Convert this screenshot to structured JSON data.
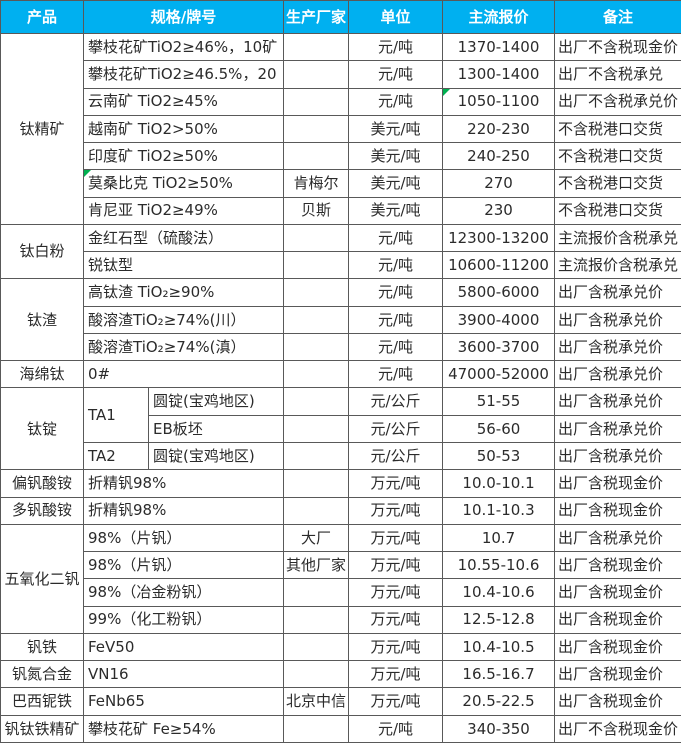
{
  "table": {
    "columns": [
      "产品",
      "规格/牌号",
      "生产厂家",
      "单位",
      "主流报价",
      "备注"
    ]
  },
  "colors": {
    "header_bg": "#00B0F0",
    "header_text": "#FFFFFF",
    "border": "#595959",
    "text": "#2B2B2B",
    "comment_flag_green": "#00B050"
  },
  "icons": {
    "comment_flag": "green-corner-triangle"
  },
  "rows": [
    {
      "cells": [
        {
          "col": "product",
          "t": "钛精矿",
          "rs": 7
        },
        {
          "col": "spec",
          "t": "攀枝花矿TiO2≥46%，10矿",
          "cs": 2
        },
        {
          "col": "mfr",
          "t": ""
        },
        {
          "col": "unit",
          "t": "元/吨"
        },
        {
          "col": "price",
          "t": "1370-1400"
        },
        {
          "col": "remark",
          "t": "出厂不含税现金价"
        }
      ]
    },
    {
      "cells": [
        {
          "col": "spec",
          "t": "攀枝花矿TiO2≥46.5%，20",
          "cs": 2
        },
        {
          "col": "mfr",
          "t": ""
        },
        {
          "col": "unit",
          "t": "元/吨"
        },
        {
          "col": "price",
          "t": "1300-1400"
        },
        {
          "col": "remark",
          "t": "出厂不含税承兑"
        }
      ]
    },
    {
      "cells": [
        {
          "col": "spec",
          "t": "云南矿 TiO2≥45%",
          "cs": 2
        },
        {
          "col": "mfr",
          "t": ""
        },
        {
          "col": "unit",
          "t": "元/吨"
        },
        {
          "col": "price",
          "t": "1050-1100",
          "flag": true
        },
        {
          "col": "remark",
          "t": "出厂不含税承兑价"
        }
      ]
    },
    {
      "cells": [
        {
          "col": "spec",
          "t": "越南矿 TiO2>50%",
          "cs": 2
        },
        {
          "col": "mfr",
          "t": ""
        },
        {
          "col": "unit",
          "t": "美元/吨"
        },
        {
          "col": "price",
          "t": "220-230"
        },
        {
          "col": "remark",
          "t": "不含税港口交货"
        }
      ]
    },
    {
      "cells": [
        {
          "col": "spec",
          "t": "印度矿 TiO2≥50%",
          "cs": 2
        },
        {
          "col": "mfr",
          "t": ""
        },
        {
          "col": "unit",
          "t": "美元/吨"
        },
        {
          "col": "price",
          "t": "240-250"
        },
        {
          "col": "remark",
          "t": "不含税港口交货"
        }
      ]
    },
    {
      "cells": [
        {
          "col": "spec",
          "t": "莫桑比克 TiO2≥50%",
          "cs": 2,
          "flag": true
        },
        {
          "col": "mfr",
          "t": "肯梅尔"
        },
        {
          "col": "unit",
          "t": "美元/吨"
        },
        {
          "col": "price",
          "t": "270"
        },
        {
          "col": "remark",
          "t": "不含税港口交货"
        }
      ]
    },
    {
      "cells": [
        {
          "col": "spec",
          "t": "肯尼亚 TiO2≥49%",
          "cs": 2
        },
        {
          "col": "mfr",
          "t": "贝斯"
        },
        {
          "col": "unit",
          "t": "美元/吨"
        },
        {
          "col": "price",
          "t": "230"
        },
        {
          "col": "remark",
          "t": "不含税港口交货"
        }
      ]
    },
    {
      "cells": [
        {
          "col": "product",
          "t": "钛白粉",
          "rs": 2
        },
        {
          "col": "spec",
          "t": "金红石型（硫酸法）",
          "cs": 2
        },
        {
          "col": "mfr",
          "t": ""
        },
        {
          "col": "unit",
          "t": "元/吨"
        },
        {
          "col": "price",
          "t": "12300-13200"
        },
        {
          "col": "remark",
          "t": "主流报价含税承兑"
        }
      ]
    },
    {
      "cells": [
        {
          "col": "spec",
          "t": "锐钛型",
          "cs": 2
        },
        {
          "col": "mfr",
          "t": ""
        },
        {
          "col": "unit",
          "t": "元/吨"
        },
        {
          "col": "price",
          "t": "10600-11200"
        },
        {
          "col": "remark",
          "t": "主流报价含税承兑"
        }
      ]
    },
    {
      "cells": [
        {
          "col": "product",
          "t": "钛渣",
          "rs": 3
        },
        {
          "col": "spec",
          "t": "高钛渣 TiO₂≥90%",
          "cs": 2
        },
        {
          "col": "mfr",
          "t": ""
        },
        {
          "col": "unit",
          "t": "元/吨"
        },
        {
          "col": "price",
          "t": "5800-6000"
        },
        {
          "col": "remark",
          "t": "出厂含税承兑价"
        }
      ]
    },
    {
      "cells": [
        {
          "col": "spec",
          "t": "酸溶渣TiO₂≥74%(川）",
          "cs": 2
        },
        {
          "col": "mfr",
          "t": ""
        },
        {
          "col": "unit",
          "t": "元/吨"
        },
        {
          "col": "price",
          "t": "3900-4000"
        },
        {
          "col": "remark",
          "t": "出厂含税承兑价"
        }
      ]
    },
    {
      "cells": [
        {
          "col": "spec",
          "t": "酸溶渣TiO₂≥74%(滇）",
          "cs": 2
        },
        {
          "col": "mfr",
          "t": ""
        },
        {
          "col": "unit",
          "t": "元/吨"
        },
        {
          "col": "price",
          "t": "3600-3700"
        },
        {
          "col": "remark",
          "t": "出厂含税承兑价"
        }
      ]
    },
    {
      "cells": [
        {
          "col": "product",
          "t": "海绵钛"
        },
        {
          "col": "spec",
          "t": "0#",
          "cs": 2
        },
        {
          "col": "mfr",
          "t": ""
        },
        {
          "col": "unit",
          "t": "元/吨"
        },
        {
          "col": "price",
          "t": "47000-52000"
        },
        {
          "col": "remark",
          "t": "出厂含税承兑价"
        }
      ]
    },
    {
      "cells": [
        {
          "col": "product",
          "t": "钛锭",
          "rs": 3
        },
        {
          "col": "specA",
          "t": "TA1",
          "rs": 2
        },
        {
          "col": "specB",
          "t": "圆锭(宝鸡地区)"
        },
        {
          "col": "mfr",
          "t": ""
        },
        {
          "col": "unit",
          "t": "元/公斤"
        },
        {
          "col": "price",
          "t": "51-55"
        },
        {
          "col": "remark",
          "t": "出厂含税承兑价"
        }
      ]
    },
    {
      "cells": [
        {
          "col": "specB",
          "t": "EB板坯"
        },
        {
          "col": "mfr",
          "t": ""
        },
        {
          "col": "unit",
          "t": "元/公斤"
        },
        {
          "col": "price",
          "t": "56-60"
        },
        {
          "col": "remark",
          "t": "出厂含税承兑价"
        }
      ]
    },
    {
      "cells": [
        {
          "col": "specA",
          "t": "TA2"
        },
        {
          "col": "specB",
          "t": "圆锭(宝鸡地区)"
        },
        {
          "col": "mfr",
          "t": ""
        },
        {
          "col": "unit",
          "t": "元/公斤"
        },
        {
          "col": "price",
          "t": "50-53"
        },
        {
          "col": "remark",
          "t": "出厂含税承兑价"
        }
      ]
    },
    {
      "cells": [
        {
          "col": "product",
          "t": "偏钒酸铵"
        },
        {
          "col": "spec",
          "t": "折精钒98%",
          "cs": 2
        },
        {
          "col": "mfr",
          "t": ""
        },
        {
          "col": "unit",
          "t": "万元/吨"
        },
        {
          "col": "price",
          "t": "10.0-10.1"
        },
        {
          "col": "remark",
          "t": "出厂含税现金价"
        }
      ]
    },
    {
      "cells": [
        {
          "col": "product",
          "t": "多钒酸铵"
        },
        {
          "col": "spec",
          "t": "折精钒98%",
          "cs": 2
        },
        {
          "col": "mfr",
          "t": ""
        },
        {
          "col": "unit",
          "t": "万元/吨"
        },
        {
          "col": "price",
          "t": "10.1-10.3"
        },
        {
          "col": "remark",
          "t": "出厂含税现金价"
        }
      ]
    },
    {
      "cells": [
        {
          "col": "product",
          "t": "五氧化二钒",
          "rs": 4
        },
        {
          "col": "spec",
          "t": "98%（片钒）",
          "cs": 2
        },
        {
          "col": "mfr",
          "t": "大厂"
        },
        {
          "col": "unit",
          "t": "万元/吨"
        },
        {
          "col": "price",
          "t": "10.7"
        },
        {
          "col": "remark",
          "t": "出厂含税承兑价"
        }
      ]
    },
    {
      "cells": [
        {
          "col": "spec",
          "t": "98%（片钒）",
          "cs": 2
        },
        {
          "col": "mfr",
          "t": "其他厂家"
        },
        {
          "col": "unit",
          "t": "万元/吨"
        },
        {
          "col": "price",
          "t": "10.55-10.6"
        },
        {
          "col": "remark",
          "t": "出厂含税现金价"
        }
      ]
    },
    {
      "cells": [
        {
          "col": "spec",
          "t": "98%（冶金粉钒）",
          "cs": 2
        },
        {
          "col": "mfr",
          "t": ""
        },
        {
          "col": "unit",
          "t": "万元/吨"
        },
        {
          "col": "price",
          "t": "10.4-10.6"
        },
        {
          "col": "remark",
          "t": "出厂含税现金价"
        }
      ]
    },
    {
      "cells": [
        {
          "col": "spec",
          "t": "99%（化工粉钒）",
          "cs": 2
        },
        {
          "col": "mfr",
          "t": ""
        },
        {
          "col": "unit",
          "t": "万元/吨"
        },
        {
          "col": "price",
          "t": "12.5-12.8"
        },
        {
          "col": "remark",
          "t": "出厂含税现金价"
        }
      ]
    },
    {
      "cells": [
        {
          "col": "product",
          "t": "钒铁"
        },
        {
          "col": "spec",
          "t": "FeV50",
          "cs": 2
        },
        {
          "col": "mfr",
          "t": ""
        },
        {
          "col": "unit",
          "t": "万元/吨"
        },
        {
          "col": "price",
          "t": "10.4-10.5"
        },
        {
          "col": "remark",
          "t": "出厂含税现金价"
        }
      ]
    },
    {
      "cells": [
        {
          "col": "product",
          "t": "钒氮合金"
        },
        {
          "col": "spec",
          "t": "VN16",
          "cs": 2
        },
        {
          "col": "mfr",
          "t": ""
        },
        {
          "col": "unit",
          "t": "万元/吨"
        },
        {
          "col": "price",
          "t": "16.5-16.7"
        },
        {
          "col": "remark",
          "t": "出厂含税现金价"
        }
      ]
    },
    {
      "cells": [
        {
          "col": "product",
          "t": "巴西铌铁"
        },
        {
          "col": "spec",
          "t": "FeNb65",
          "cs": 2
        },
        {
          "col": "mfr",
          "t": "北京中信"
        },
        {
          "col": "unit",
          "t": "万元/吨"
        },
        {
          "col": "price",
          "t": "20.5-22.5"
        },
        {
          "col": "remark",
          "t": "出厂含税现金价"
        }
      ]
    },
    {
      "cells": [
        {
          "col": "product",
          "t": "钒钛铁精矿"
        },
        {
          "col": "spec",
          "t": "攀枝花矿 Fe≥54%",
          "cs": 2
        },
        {
          "col": "mfr",
          "t": ""
        },
        {
          "col": "unit",
          "t": "元/吨"
        },
        {
          "col": "price",
          "t": "340-350"
        },
        {
          "col": "remark",
          "t": "出厂不含税现金价"
        }
      ]
    }
  ]
}
